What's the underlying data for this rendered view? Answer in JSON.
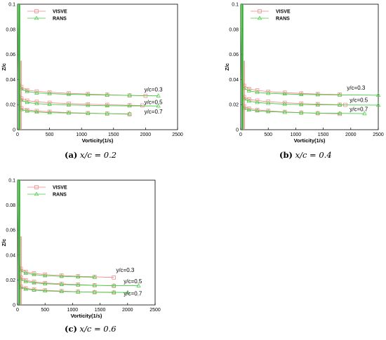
{
  "figures": [
    {
      "label": "(a)",
      "expr": "x/c = 0.2"
    },
    {
      "label": "(b)",
      "expr": "x/c = 0.4"
    },
    {
      "label": "(c)",
      "expr": "x/c = 0.6"
    }
  ],
  "colors": {
    "VISVE": "#f08080",
    "RANS": "#44cc44",
    "axis": "#000000"
  },
  "chart_data": [
    {
      "type": "line",
      "xlabel": "Vorticity(1/s)",
      "ylabel": "Z/c",
      "xlim": [
        0,
        2500
      ],
      "ylim": [
        0,
        0.1
      ],
      "xticks": [
        0,
        500,
        1000,
        1500,
        2000,
        2500
      ],
      "yticks": [
        0,
        0.02,
        0.04,
        0.06,
        0.08,
        0.1
      ],
      "ytick_labels": [
        "0",
        "0.02",
        "0.04",
        "0.06",
        "0.08",
        "0.1"
      ],
      "legend": {
        "position": "top-left",
        "entries": [
          "VISVE",
          "RANS"
        ]
      },
      "annotations": [
        {
          "text": "y/c=0.3",
          "x": 1980,
          "y": 0.0305
        },
        {
          "text": "y/c=0.5",
          "x": 1980,
          "y": 0.0205
        },
        {
          "text": "y/c=0.7",
          "x": 1980,
          "y": 0.0128
        }
      ],
      "series": [
        {
          "name": "VISVE",
          "group": "y/c=0.3",
          "x": [
            5,
            20,
            60,
            150,
            300,
            500,
            800,
            1100,
            1400,
            1750,
            2000
          ],
          "y": [
            0.1,
            0.04,
            0.034,
            0.0315,
            0.0305,
            0.0298,
            0.029,
            0.0284,
            0.0279,
            0.0273,
            0.027
          ]
        },
        {
          "name": "RANS",
          "group": "y/c=0.3",
          "x": [
            5,
            20,
            60,
            150,
            300,
            500,
            800,
            1100,
            1400,
            1750,
            2200
          ],
          "y": [
            0.1,
            0.038,
            0.0325,
            0.0305,
            0.0293,
            0.0287,
            0.0282,
            0.0279,
            0.0276,
            0.0273,
            0.027
          ]
        },
        {
          "name": "VISVE",
          "group": "y/c=0.5",
          "x": [
            5,
            20,
            60,
            150,
            300,
            500,
            800,
            1100,
            1400,
            1750,
            1950
          ],
          "y": [
            0.1,
            0.03,
            0.025,
            0.0232,
            0.0222,
            0.0215,
            0.0208,
            0.0203,
            0.0199,
            0.0195,
            0.0193
          ]
        },
        {
          "name": "RANS",
          "group": "y/c=0.5",
          "x": [
            5,
            20,
            60,
            150,
            300,
            500,
            800,
            1100,
            1400,
            1750,
            2200
          ],
          "y": [
            0.1,
            0.028,
            0.0235,
            0.0218,
            0.0208,
            0.0202,
            0.0197,
            0.0194,
            0.0191,
            0.019,
            0.0189
          ]
        },
        {
          "name": "VISVE",
          "group": "y/c=0.7",
          "x": [
            5,
            20,
            60,
            150,
            300,
            500,
            800,
            1100,
            1400,
            1750
          ],
          "y": [
            0.1,
            0.021,
            0.0172,
            0.0158,
            0.0149,
            0.0143,
            0.0136,
            0.0132,
            0.0128,
            0.0123
          ]
        },
        {
          "name": "RANS",
          "group": "y/c=0.7",
          "x": [
            5,
            20,
            60,
            150,
            300,
            500,
            800,
            1100,
            1400,
            1750
          ],
          "y": [
            0.1,
            0.019,
            0.016,
            0.0148,
            0.0141,
            0.0136,
            0.0133,
            0.013,
            0.0128,
            0.0126
          ]
        }
      ]
    },
    {
      "type": "line",
      "xlabel": "Vorticity(1/s)",
      "ylabel": "Z/c",
      "xlim": [
        0,
        2500
      ],
      "ylim": [
        0,
        0.1
      ],
      "xticks": [
        0,
        500,
        1000,
        1500,
        2000,
        2500
      ],
      "yticks": [
        0,
        0.02,
        0.04,
        0.06,
        0.08,
        0.1
      ],
      "ytick_labels": [
        "0",
        "0.02",
        "0.04",
        "0.06",
        "0.08",
        "0.1"
      ],
      "legend": {
        "position": "top-left",
        "entries": [
          "VISVE",
          "RANS"
        ]
      },
      "annotations": [
        {
          "text": "y/c=0.3",
          "x": 1930,
          "y": 0.0318
        },
        {
          "text": "y/c=0.5",
          "x": 1980,
          "y": 0.0222
        },
        {
          "text": "y/c=0.7",
          "x": 1980,
          "y": 0.0148
        }
      ],
      "series": [
        {
          "name": "VISVE",
          "group": "y/c=0.3",
          "x": [
            5,
            20,
            60,
            150,
            300,
            500,
            800,
            1100,
            1400,
            1800
          ],
          "y": [
            0.1,
            0.04,
            0.035,
            0.0325,
            0.0313,
            0.0303,
            0.0295,
            0.0289,
            0.0284,
            0.028
          ]
        },
        {
          "name": "RANS",
          "group": "y/c=0.3",
          "x": [
            5,
            20,
            60,
            150,
            300,
            500,
            800,
            1100,
            1400,
            1800,
            2500
          ],
          "y": [
            0.1,
            0.038,
            0.033,
            0.031,
            0.0298,
            0.029,
            0.0285,
            0.0281,
            0.0279,
            0.0277,
            0.0275
          ]
        },
        {
          "name": "VISVE",
          "group": "y/c=0.5",
          "x": [
            5,
            20,
            60,
            150,
            300,
            500,
            800,
            1100,
            1400,
            1800,
            1900
          ],
          "y": [
            0.1,
            0.03,
            0.026,
            0.0242,
            0.0232,
            0.0223,
            0.0215,
            0.0209,
            0.0204,
            0.0199,
            0.0198
          ]
        },
        {
          "name": "RANS",
          "group": "y/c=0.5",
          "x": [
            5,
            20,
            60,
            150,
            300,
            500,
            800,
            1100,
            1400,
            1800,
            2500
          ],
          "y": [
            0.1,
            0.028,
            0.0245,
            0.0228,
            0.0217,
            0.021,
            0.0204,
            0.02,
            0.0198,
            0.0197,
            0.0196
          ]
        },
        {
          "name": "VISVE",
          "group": "y/c=0.7",
          "x": [
            5,
            20,
            60,
            150,
            300,
            500,
            800,
            1100,
            1400,
            1800
          ],
          "y": [
            0.1,
            0.022,
            0.0185,
            0.0168,
            0.0158,
            0.015,
            0.0142,
            0.0136,
            0.0131,
            0.0126
          ]
        },
        {
          "name": "RANS",
          "group": "y/c=0.7",
          "x": [
            5,
            20,
            60,
            150,
            300,
            500,
            800,
            1100,
            1400,
            1800,
            2250
          ],
          "y": [
            0.1,
            0.02,
            0.017,
            0.0158,
            0.015,
            0.0144,
            0.0139,
            0.0135,
            0.0132,
            0.013,
            0.0128
          ]
        }
      ]
    },
    {
      "type": "line",
      "xlabel": "Vorticity(1/s)",
      "ylabel": "Z/c",
      "xlim": [
        0,
        2500
      ],
      "ylim": [
        0,
        0.1
      ],
      "xticks": [
        0,
        500,
        1000,
        1500,
        2000,
        2500
      ],
      "yticks": [
        0,
        0.02,
        0.04,
        0.06,
        0.08,
        0.1
      ],
      "ytick_labels": [
        "0",
        "0.02",
        "0.04",
        "0.06",
        "0.08",
        "0.1"
      ],
      "legend": {
        "position": "top-left",
        "entries": [
          "VISVE",
          "RANS"
        ]
      },
      "annotations": [
        {
          "text": "y/c=0.3",
          "x": 1790,
          "y": 0.0265
        },
        {
          "text": "y/c=0.5",
          "x": 1930,
          "y": 0.0175
        },
        {
          "text": "y/c=0.7",
          "x": 1930,
          "y": 0.0075
        }
      ],
      "series": [
        {
          "name": "VISVE",
          "group": "y/c=0.3",
          "x": [
            5,
            20,
            60,
            150,
            300,
            500,
            800,
            1100,
            1400,
            1750
          ],
          "y": [
            0.1,
            0.034,
            0.029,
            0.0265,
            0.0253,
            0.0244,
            0.0236,
            0.023,
            0.0225,
            0.022
          ]
        },
        {
          "name": "RANS",
          "group": "y/c=0.3",
          "x": [
            5,
            20,
            60,
            150,
            300,
            500,
            800,
            1100,
            1400
          ],
          "y": [
            0.1,
            0.032,
            0.0275,
            0.0255,
            0.0243,
            0.0235,
            0.0229,
            0.0225,
            0.0222
          ]
        },
        {
          "name": "VISVE",
          "group": "y/c=0.5",
          "x": [
            5,
            20,
            60,
            150,
            300,
            500,
            800,
            1100,
            1400,
            1750
          ],
          "y": [
            0.1,
            0.026,
            0.022,
            0.0198,
            0.0185,
            0.0176,
            0.0169,
            0.0163,
            0.0158,
            0.0153
          ]
        },
        {
          "name": "RANS",
          "group": "y/c=0.5",
          "x": [
            5,
            20,
            60,
            150,
            300,
            500,
            800,
            1100,
            1400,
            1750,
            2200
          ],
          "y": [
            0.1,
            0.024,
            0.0205,
            0.0188,
            0.0177,
            0.017,
            0.0164,
            0.016,
            0.0157,
            0.0155,
            0.0154
          ]
        },
        {
          "name": "VISVE",
          "group": "y/c=0.7",
          "x": [
            5,
            20,
            60,
            150,
            300,
            500,
            800,
            1100,
            1400,
            1750
          ],
          "y": [
            0.1,
            0.018,
            0.0148,
            0.0133,
            0.0124,
            0.0117,
            0.0111,
            0.0106,
            0.0102,
            0.0099
          ]
        },
        {
          "name": "RANS",
          "group": "y/c=0.7",
          "x": [
            5,
            20,
            60,
            150,
            300,
            500,
            800,
            1100,
            1400,
            1750,
            2000
          ],
          "y": [
            0.1,
            0.017,
            0.014,
            0.0127,
            0.0119,
            0.0113,
            0.0108,
            0.0105,
            0.0103,
            0.0101,
            0.01
          ]
        }
      ]
    }
  ]
}
